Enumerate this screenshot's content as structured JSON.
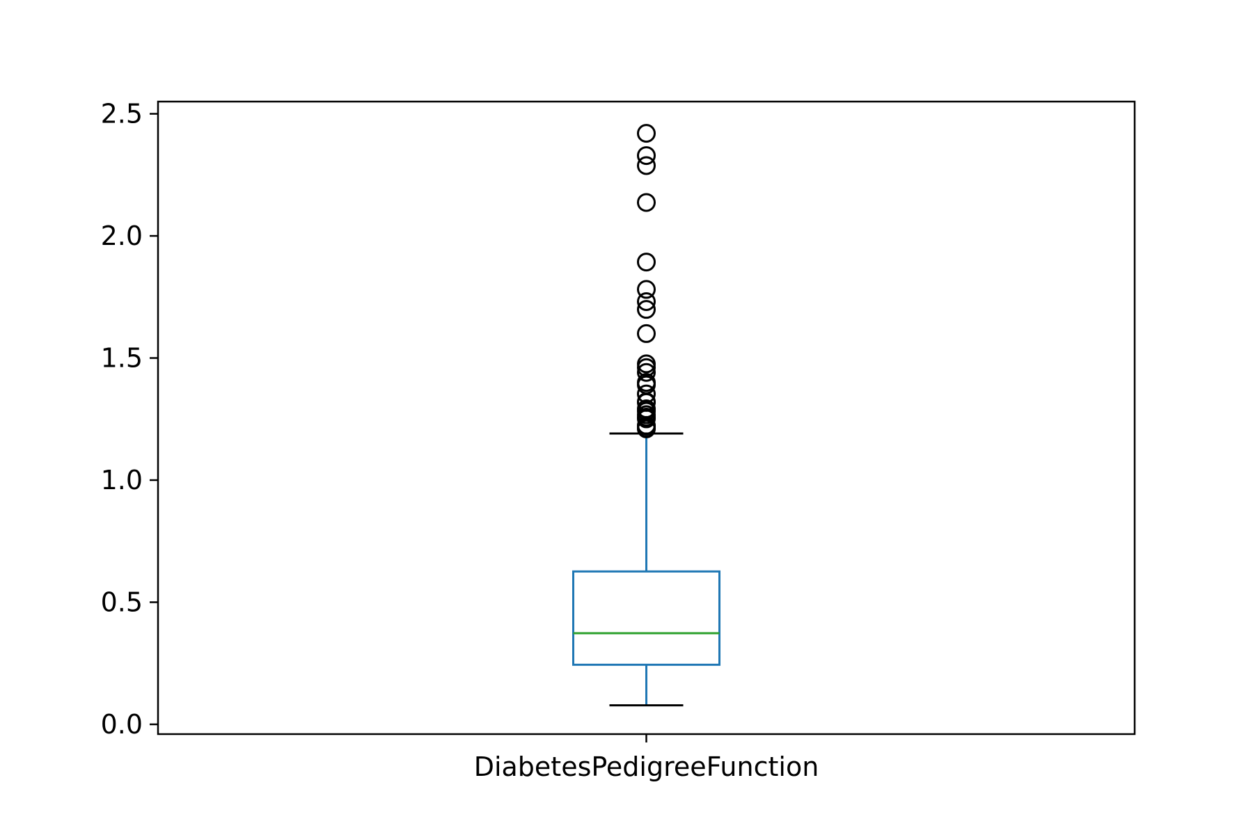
{
  "chart_data": {
    "type": "box",
    "title": "",
    "xlabel": "",
    "ylabel": "",
    "categories": [
      "DiabetesPedigreeFunction"
    ],
    "ylim": [
      -0.04,
      2.55
    ],
    "yticks": [
      0.0,
      0.5,
      1.0,
      1.5,
      2.0,
      2.5
    ],
    "ytick_labels": [
      "0.0",
      "0.5",
      "1.0",
      "1.5",
      "2.0",
      "2.5"
    ],
    "grid": false,
    "series": [
      {
        "category": "DiabetesPedigreeFunction",
        "whisker_low": 0.078,
        "q1": 0.244,
        "median": 0.373,
        "q3": 0.626,
        "whisker_high": 1.191,
        "outliers": [
          2.42,
          2.329,
          2.288,
          2.137,
          1.893,
          1.781,
          1.731,
          1.699,
          1.6,
          1.476,
          1.461,
          1.441,
          1.4,
          1.39,
          1.353,
          1.321,
          1.318,
          1.292,
          1.282,
          1.268,
          1.258,
          1.251,
          1.224,
          1.222,
          1.213,
          1.21
        ]
      }
    ],
    "colors": {
      "box": "#1f77b4",
      "median": "#2ca02c",
      "caps": "#000000",
      "outlier_edge": "#000000",
      "axes": "#000000"
    }
  }
}
